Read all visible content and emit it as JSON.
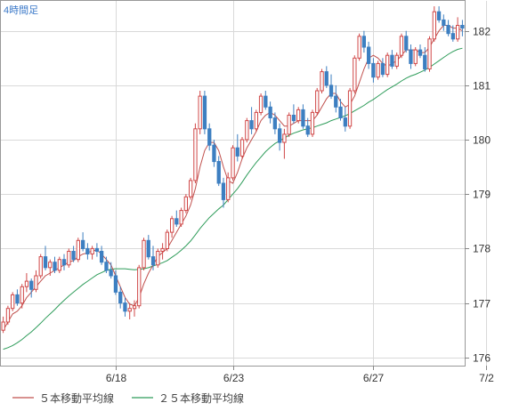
{
  "chart_data": {
    "type": "candlestick",
    "period_label": "4時間足",
    "colors": {
      "up": "#d04848",
      "down": "#3d7fc1",
      "ma5": "#c0504d",
      "ma25": "#2e9c5a",
      "grid": "#d9d9d9",
      "axis": "#888888"
    },
    "y_axis": {
      "min": 175.85,
      "max": 182.55,
      "ticks": [
        176,
        177,
        178,
        179,
        180,
        181,
        182
      ],
      "position": "right"
    },
    "x_ticks": [
      {
        "label": "6/18",
        "index": 24
      },
      {
        "label": "6/23",
        "index": 49
      },
      {
        "label": "6/27",
        "index": 79
      },
      {
        "label": "7/2",
        "index": 103
      }
    ],
    "legend": [
      {
        "name": "５本移動平均線",
        "color": "#c0504d"
      },
      {
        "name": "２５本移動平均線",
        "color": "#2e9c5a"
      }
    ],
    "ohlc": [
      [
        176.5,
        176.75,
        176.45,
        176.65
      ],
      [
        176.65,
        176.95,
        176.6,
        176.9
      ],
      [
        176.9,
        177.2,
        176.85,
        177.15
      ],
      [
        177.15,
        177.25,
        176.95,
        177.0
      ],
      [
        177.0,
        177.35,
        176.9,
        177.3
      ],
      [
        177.3,
        177.55,
        177.2,
        177.4
      ],
      [
        177.4,
        177.45,
        177.1,
        177.25
      ],
      [
        177.25,
        177.6,
        177.2,
        177.5
      ],
      [
        177.5,
        177.9,
        177.45,
        177.85
      ],
      [
        177.85,
        178.05,
        177.6,
        177.65
      ],
      [
        177.65,
        177.8,
        177.5,
        177.75
      ],
      [
        177.75,
        177.85,
        177.55,
        177.6
      ],
      [
        177.6,
        177.85,
        177.55,
        177.8
      ],
      [
        177.8,
        177.9,
        177.6,
        177.7
      ],
      [
        177.7,
        178.0,
        177.65,
        177.95
      ],
      [
        177.95,
        178.05,
        177.75,
        177.8
      ],
      [
        177.8,
        178.2,
        177.75,
        178.15
      ],
      [
        178.15,
        178.3,
        177.95,
        178.0
      ],
      [
        178.0,
        178.1,
        177.8,
        177.9
      ],
      [
        177.9,
        178.05,
        177.8,
        178.0
      ],
      [
        178.0,
        178.1,
        177.85,
        177.95
      ],
      [
        177.95,
        178.05,
        177.7,
        177.75
      ],
      [
        177.75,
        177.85,
        177.55,
        177.6
      ],
      [
        177.6,
        177.75,
        177.45,
        177.5
      ],
      [
        177.5,
        177.6,
        177.15,
        177.2
      ],
      [
        177.2,
        177.3,
        176.9,
        177.0
      ],
      [
        177.0,
        177.1,
        176.75,
        176.85
      ],
      [
        176.85,
        177.0,
        176.7,
        176.9
      ],
      [
        176.9,
        177.05,
        176.75,
        176.95
      ],
      [
        176.95,
        177.7,
        176.9,
        177.65
      ],
      [
        177.65,
        178.2,
        177.6,
        178.15
      ],
      [
        178.15,
        178.25,
        177.8,
        177.85
      ],
      [
        177.85,
        178.05,
        177.6,
        177.7
      ],
      [
        177.7,
        178.0,
        177.65,
        177.95
      ],
      [
        177.95,
        178.1,
        177.8,
        178.0
      ],
      [
        178.0,
        178.35,
        177.95,
        178.3
      ],
      [
        178.3,
        178.6,
        178.2,
        178.55
      ],
      [
        178.55,
        178.7,
        178.4,
        178.45
      ],
      [
        178.45,
        178.75,
        178.4,
        178.7
      ],
      [
        178.7,
        179.0,
        178.65,
        178.95
      ],
      [
        178.95,
        179.3,
        178.9,
        179.25
      ],
      [
        179.25,
        180.3,
        179.2,
        180.2
      ],
      [
        180.2,
        180.9,
        180.1,
        180.8
      ],
      [
        180.8,
        180.9,
        180.1,
        180.2
      ],
      [
        180.2,
        180.3,
        179.8,
        179.9
      ],
      [
        179.9,
        180.0,
        179.5,
        179.6
      ],
      [
        179.6,
        179.7,
        179.15,
        179.2
      ],
      [
        179.2,
        179.3,
        178.75,
        178.9
      ],
      [
        178.9,
        179.4,
        178.85,
        179.3
      ],
      [
        179.3,
        179.9,
        179.25,
        179.85
      ],
      [
        179.85,
        180.1,
        179.6,
        179.7
      ],
      [
        179.7,
        180.05,
        179.65,
        180.0
      ],
      [
        180.0,
        180.4,
        179.95,
        180.35
      ],
      [
        180.35,
        180.6,
        180.1,
        180.2
      ],
      [
        180.2,
        180.55,
        180.15,
        180.5
      ],
      [
        180.5,
        180.85,
        180.45,
        180.8
      ],
      [
        180.8,
        180.9,
        180.55,
        180.6
      ],
      [
        180.6,
        180.7,
        180.3,
        180.4
      ],
      [
        180.4,
        180.5,
        180.1,
        180.2
      ],
      [
        180.2,
        180.3,
        179.8,
        179.95
      ],
      [
        179.95,
        180.2,
        179.65,
        180.1
      ],
      [
        180.1,
        180.5,
        180.05,
        180.45
      ],
      [
        180.45,
        180.65,
        180.3,
        180.35
      ],
      [
        180.35,
        180.6,
        180.3,
        180.55
      ],
      [
        180.55,
        180.65,
        180.2,
        180.25
      ],
      [
        180.25,
        180.4,
        180.05,
        180.1
      ],
      [
        180.1,
        180.55,
        180.05,
        180.5
      ],
      [
        180.5,
        180.95,
        180.45,
        180.9
      ],
      [
        180.9,
        181.3,
        180.85,
        181.25
      ],
      [
        181.25,
        181.35,
        180.95,
        181.0
      ],
      [
        181.0,
        181.2,
        180.75,
        180.8
      ],
      [
        180.8,
        181.0,
        180.5,
        180.6
      ],
      [
        180.6,
        180.75,
        180.35,
        180.4
      ],
      [
        180.4,
        180.6,
        180.15,
        180.25
      ],
      [
        180.25,
        180.95,
        180.2,
        180.9
      ],
      [
        180.9,
        181.55,
        180.85,
        181.5
      ],
      [
        181.5,
        181.95,
        181.45,
        181.9
      ],
      [
        181.9,
        182.0,
        181.6,
        181.7
      ],
      [
        181.7,
        181.8,
        181.3,
        181.4
      ],
      [
        181.4,
        181.5,
        181.05,
        181.15
      ],
      [
        181.15,
        181.45,
        181.1,
        181.4
      ],
      [
        181.4,
        181.5,
        181.15,
        181.2
      ],
      [
        181.2,
        181.6,
        181.15,
        181.55
      ],
      [
        181.55,
        181.65,
        181.3,
        181.35
      ],
      [
        181.35,
        181.6,
        181.3,
        181.55
      ],
      [
        181.55,
        181.95,
        181.5,
        181.9
      ],
      [
        181.9,
        182.0,
        181.6,
        181.65
      ],
      [
        181.65,
        181.75,
        181.3,
        181.4
      ],
      [
        181.4,
        181.7,
        181.35,
        181.65
      ],
      [
        181.65,
        181.75,
        181.5,
        181.55
      ],
      [
        181.55,
        181.7,
        181.25,
        181.3
      ],
      [
        181.3,
        181.9,
        181.25,
        181.85
      ],
      [
        181.85,
        182.45,
        181.8,
        182.35
      ],
      [
        182.35,
        182.45,
        182.15,
        182.2
      ],
      [
        182.2,
        182.3,
        182.0,
        182.1
      ],
      [
        182.1,
        182.2,
        181.9,
        181.95
      ],
      [
        181.95,
        182.1,
        181.8,
        181.85
      ],
      [
        181.85,
        182.25,
        181.8,
        182.1
      ],
      [
        182.1,
        182.2,
        181.9,
        182.05
      ]
    ],
    "ma5": [
      176.5,
      176.65,
      176.8,
      176.85,
      176.95,
      177.1,
      177.2,
      177.3,
      177.4,
      177.5,
      177.55,
      177.6,
      177.65,
      177.7,
      177.75,
      177.78,
      177.85,
      177.9,
      177.92,
      177.96,
      177.97,
      177.9,
      177.8,
      177.7,
      177.5,
      177.3,
      177.1,
      176.98,
      176.95,
      177.1,
      177.35,
      177.55,
      177.7,
      177.85,
      177.93,
      178.0,
      178.15,
      178.3,
      178.45,
      178.6,
      178.8,
      179.1,
      179.5,
      179.8,
      179.95,
      179.95,
      179.8,
      179.5,
      179.25,
      179.2,
      179.4,
      179.65,
      179.85,
      180.0,
      180.15,
      180.35,
      180.45,
      180.5,
      180.45,
      180.35,
      180.25,
      180.25,
      180.3,
      180.35,
      180.35,
      180.35,
      180.35,
      180.45,
      180.6,
      180.75,
      180.85,
      180.85,
      180.7,
      180.6,
      180.65,
      180.8,
      181.05,
      181.3,
      181.5,
      181.55,
      181.5,
      181.4,
      181.35,
      181.4,
      181.45,
      181.55,
      181.65,
      181.65,
      181.65,
      181.6,
      181.6,
      181.7,
      181.85,
      182.0,
      182.1,
      182.1,
      182.05,
      182.05,
      182.0
    ],
    "ma25": [
      176.15,
      176.18,
      176.22,
      176.27,
      176.33,
      176.4,
      176.47,
      176.55,
      176.63,
      176.72,
      176.8,
      176.88,
      176.97,
      177.05,
      177.13,
      177.2,
      177.27,
      177.34,
      177.4,
      177.46,
      177.52,
      177.56,
      177.6,
      177.62,
      177.63,
      177.63,
      177.63,
      177.62,
      177.61,
      177.62,
      177.63,
      177.65,
      177.68,
      177.71,
      177.74,
      177.78,
      177.84,
      177.9,
      177.97,
      178.05,
      178.14,
      178.25,
      178.37,
      178.47,
      178.57,
      178.65,
      178.73,
      178.8,
      178.9,
      179.0,
      179.1,
      179.22,
      179.35,
      179.47,
      179.58,
      179.68,
      179.78,
      179.86,
      179.93,
      179.98,
      180.03,
      180.08,
      180.12,
      180.15,
      180.18,
      180.2,
      180.22,
      180.25,
      180.28,
      180.31,
      180.35,
      180.38,
      180.41,
      180.44,
      180.48,
      180.53,
      180.58,
      180.63,
      180.69,
      180.74,
      180.8,
      180.86,
      180.92,
      180.97,
      181.02,
      181.08,
      181.13,
      181.17,
      181.2,
      181.24,
      181.28,
      181.33,
      181.39,
      181.45,
      181.51,
      181.57,
      181.62,
      181.66,
      181.68
    ]
  }
}
